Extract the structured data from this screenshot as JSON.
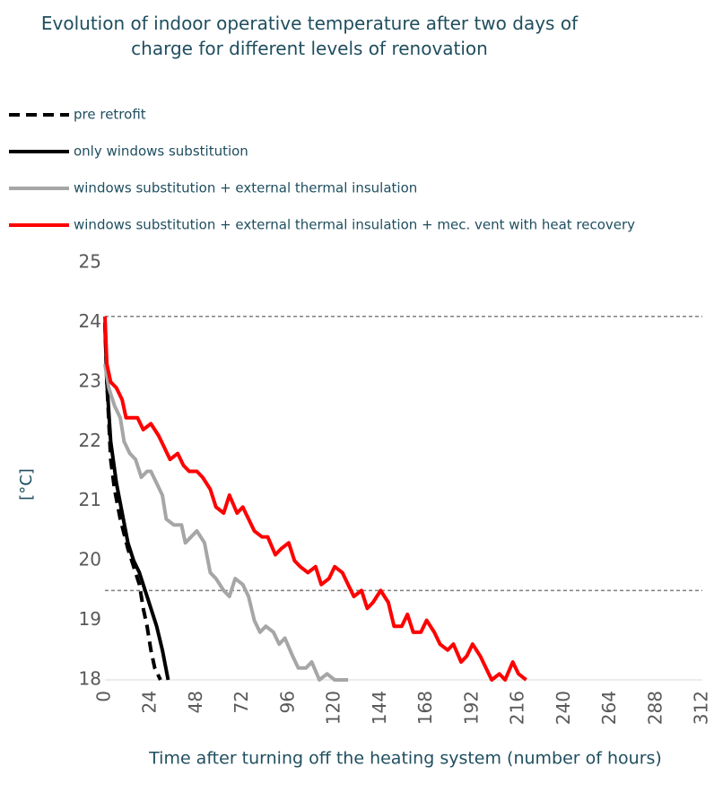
{
  "chart_data": {
    "type": "line",
    "title": "Evolution of indoor operative temperature after two days of charge for different levels of renovation",
    "y_label": "[°C]",
    "x_label": "Time after turning off the heating system (number of hours)",
    "xlim": [
      0,
      312
    ],
    "xticks": [
      0,
      24,
      48,
      72,
      96,
      120,
      144,
      168,
      192,
      216,
      240,
      264,
      288,
      312
    ],
    "ylim": [
      18,
      25
    ],
    "yticks": [
      18,
      19,
      20,
      21,
      22,
      23,
      24,
      25
    ],
    "reference_lines": [
      24.1,
      19.5
    ],
    "series": [
      {
        "name": "pre retrofit",
        "color": "#000000",
        "line_style": "dashed",
        "x": [
          0,
          1,
          3,
          5,
          8,
          12,
          15,
          18,
          20,
          22,
          24,
          26,
          29
        ],
        "values": [
          24,
          23,
          21.7,
          21.2,
          20.7,
          20.2,
          19.9,
          19.6,
          19.2,
          18.9,
          18.5,
          18.2,
          18
        ]
      },
      {
        "name": "only windows substitution",
        "color": "#000000",
        "line_style": "solid",
        "x": [
          0,
          1,
          3,
          6,
          9,
          12,
          15,
          18,
          21,
          24,
          27,
          30,
          33
        ],
        "values": [
          24,
          23,
          22,
          21.3,
          20.8,
          20.3,
          20,
          19.8,
          19.5,
          19.2,
          18.9,
          18.5,
          18
        ]
      },
      {
        "name": "windows substitution + external thermal insulation",
        "color": "#a6a6a6",
        "line_style": "solid",
        "x": [
          0,
          2,
          5,
          8,
          10,
          13,
          16,
          19,
          22,
          24,
          27,
          30,
          32,
          36,
          40,
          42,
          45,
          48,
          52,
          55,
          58,
          62,
          65,
          68,
          72,
          75,
          78,
          81,
          84,
          88,
          91,
          94,
          98,
          101,
          105,
          108,
          112,
          116,
          120,
          127
        ],
        "values": [
          23.3,
          22.9,
          22.6,
          22.4,
          22,
          21.8,
          21.7,
          21.4,
          21.5,
          21.5,
          21.3,
          21.1,
          20.7,
          20.6,
          20.6,
          20.3,
          20.4,
          20.5,
          20.3,
          19.8,
          19.7,
          19.5,
          19.4,
          19.7,
          19.6,
          19.4,
          19,
          18.8,
          18.9,
          18.8,
          18.6,
          18.7,
          18.4,
          18.2,
          18.2,
          18.3,
          18,
          18.1,
          18,
          18
        ]
      },
      {
        "name": "windows substitution + external thermal insulation + mec. vent with heat recovery",
        "color": "#ff0000",
        "line_style": "solid",
        "x": [
          0,
          1,
          3,
          6,
          9,
          11,
          14,
          17,
          20,
          24,
          28,
          31,
          34,
          38,
          41,
          44,
          48,
          51,
          55,
          58,
          62,
          65,
          69,
          72,
          75,
          78,
          82,
          85,
          89,
          92,
          96,
          99,
          102,
          106,
          110,
          113,
          117,
          120,
          124,
          127,
          130,
          134,
          137,
          140,
          144,
          148,
          151,
          155,
          158,
          161,
          165,
          168,
          172,
          175,
          179,
          182,
          186,
          189,
          192,
          196,
          199,
          202,
          206,
          209,
          213,
          216,
          220
        ],
        "values": [
          24.1,
          23.3,
          23,
          22.9,
          22.7,
          22.4,
          22.4,
          22.4,
          22.2,
          22.3,
          22.1,
          21.9,
          21.7,
          21.8,
          21.6,
          21.5,
          21.5,
          21.4,
          21.2,
          20.9,
          20.8,
          21.1,
          20.8,
          20.9,
          20.7,
          20.5,
          20.4,
          20.4,
          20.1,
          20.2,
          20.3,
          20,
          19.9,
          19.8,
          19.9,
          19.6,
          19.7,
          19.9,
          19.8,
          19.6,
          19.4,
          19.5,
          19.2,
          19.3,
          19.5,
          19.3,
          18.9,
          18.9,
          19.1,
          18.8,
          18.8,
          19,
          18.8,
          18.6,
          18.5,
          18.6,
          18.3,
          18.4,
          18.6,
          18.4,
          18.2,
          18,
          18.1,
          18,
          18.3,
          18.1,
          18
        ]
      }
    ]
  }
}
